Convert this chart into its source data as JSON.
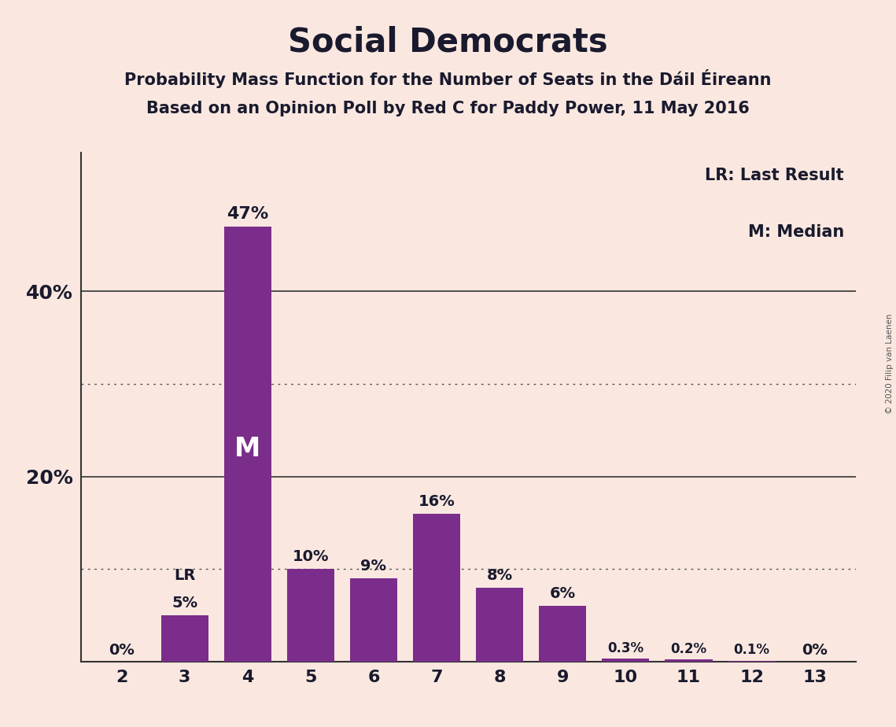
{
  "title": "Social Democrats",
  "subtitle1": "Probability Mass Function for the Number of Seats in the Dáil Éireann",
  "subtitle2": "Based on an Opinion Poll by Red C for Paddy Power, 11 May 2016",
  "copyright": "© 2020 Filip van Laenen",
  "categories": [
    2,
    3,
    4,
    5,
    6,
    7,
    8,
    9,
    10,
    11,
    12,
    13
  ],
  "values": [
    0.0,
    5.0,
    47.0,
    10.0,
    9.0,
    16.0,
    8.0,
    6.0,
    0.3,
    0.2,
    0.1,
    0.0
  ],
  "labels": [
    "0%",
    "5%",
    "47%",
    "10%",
    "9%",
    "16%",
    "8%",
    "6%",
    "0.3%",
    "0.2%",
    "0.1%",
    "0%"
  ],
  "bar_color": "#7B2D8B",
  "background_color": "#FAE8E0",
  "text_color": "#1a1a2e",
  "dotted_gridlines": [
    10.0,
    30.0
  ],
  "solid_gridlines": [
    20.0,
    40.0
  ],
  "lr_bar": 3,
  "median_bar": 4,
  "lr_label": "LR",
  "median_label": "M",
  "legend_lr": "LR: Last Result",
  "legend_m": "M: Median",
  "ylim": [
    0,
    55
  ]
}
